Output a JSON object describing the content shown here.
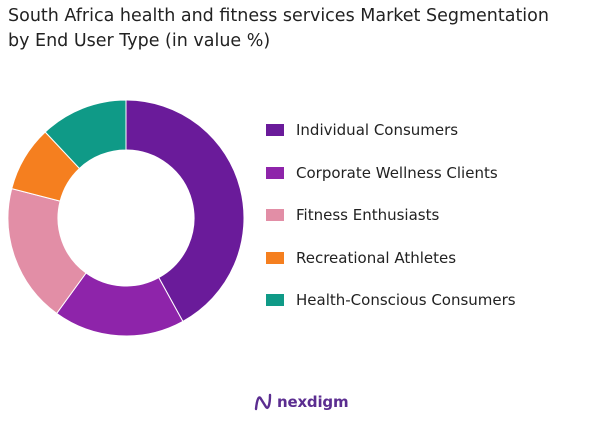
{
  "title_line1": "South Africa health and fitness services Market Segmentation",
  "title_line2": "by End User Type  (in value %)",
  "chart_data": {
    "type": "pie",
    "donut": true,
    "title": "South Africa health and fitness services Market Segmentation by End User Type  (in value %)",
    "legend_position": "right",
    "categories": [
      "Individual Consumers",
      "Corporate Wellness Clients",
      "Fitness Enthusiasts",
      "Recreational Athletes",
      "Health-Conscious Consumers"
    ],
    "values": [
      42,
      18,
      19,
      9,
      12
    ],
    "colors": [
      "#6a1b9a",
      "#8e24aa",
      "#e28ea6",
      "#f57f1f",
      "#0f9a87"
    ]
  },
  "logo": {
    "text": "nexdigm",
    "color": "#5b2d90"
  }
}
